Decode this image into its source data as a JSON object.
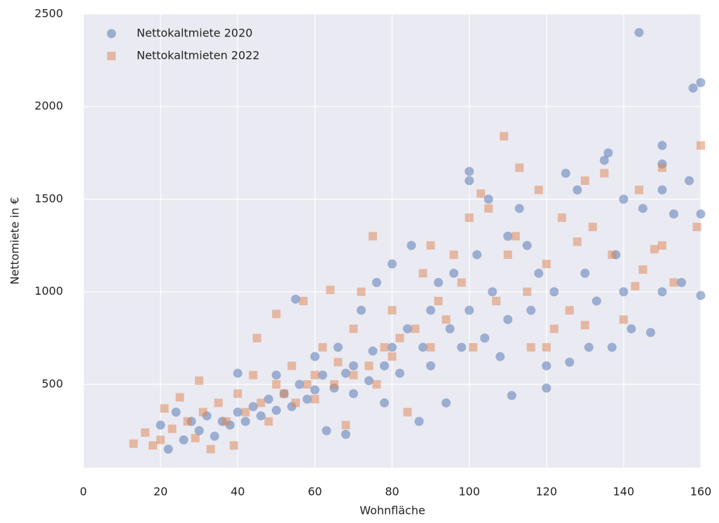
{
  "chart_data": {
    "type": "scatter",
    "x_label": "Wohnfläche",
    "y_label": "Nettomiete in €",
    "xlim": [
      0,
      160
    ],
    "xticks": [
      0,
      20,
      40,
      60,
      80,
      100,
      120,
      140,
      160
    ],
    "ylim": [
      50,
      2500
    ],
    "yticks": [
      500,
      1000,
      1500,
      2000,
      2500
    ],
    "grid": true,
    "legend": "upper-left",
    "series": [
      {
        "name": "Nettokaltmiete 2020",
        "color": "#4c72b0",
        "marker": "circle",
        "x": [
          20,
          22,
          24,
          26,
          28,
          30,
          32,
          34,
          36,
          38,
          40,
          40,
          42,
          44,
          46,
          48,
          50,
          50,
          52,
          54,
          55,
          56,
          58,
          60,
          60,
          62,
          63,
          65,
          66,
          68,
          68,
          70,
          70,
          72,
          74,
          75,
          76,
          78,
          78,
          80,
          80,
          82,
          84,
          85,
          87,
          88,
          90,
          90,
          92,
          94,
          95,
          96,
          98,
          100,
          100,
          100,
          102,
          104,
          105,
          106,
          108,
          110,
          110,
          111,
          113,
          115,
          116,
          118,
          120,
          120,
          122,
          125,
          126,
          128,
          130,
          131,
          133,
          135,
          136,
          137,
          138,
          140,
          140,
          142,
          144,
          145,
          147,
          150,
          150,
          150,
          150,
          153,
          155,
          157,
          158,
          160,
          160,
          160
        ],
        "values": [
          280,
          150,
          350,
          200,
          300,
          250,
          330,
          220,
          300,
          280,
          350,
          560,
          300,
          380,
          330,
          420,
          360,
          550,
          450,
          380,
          960,
          500,
          420,
          470,
          650,
          550,
          250,
          480,
          700,
          230,
          560,
          600,
          450,
          900,
          520,
          680,
          1050,
          600,
          400,
          700,
          1150,
          560,
          800,
          1250,
          300,
          700,
          900,
          600,
          1050,
          400,
          800,
          1100,
          700,
          1650,
          1600,
          900,
          1200,
          750,
          1500,
          1000,
          650,
          1300,
          850,
          440,
          1450,
          1250,
          900,
          1100,
          480,
          600,
          1000,
          1640,
          620,
          1550,
          1100,
          700,
          950,
          1710,
          1750,
          700,
          1200,
          1500,
          1000,
          800,
          2400,
          1450,
          780,
          1790,
          1690,
          1550,
          1000,
          1420,
          1050,
          1600,
          2100,
          2130,
          1420,
          980
        ]
      },
      {
        "name": "Nettokaltmieten 2022",
        "color": "#dd8452",
        "marker": "square",
        "x": [
          13,
          16,
          18,
          20,
          21,
          23,
          25,
          27,
          29,
          30,
          31,
          33,
          35,
          37,
          39,
          40,
          42,
          44,
          45,
          46,
          48,
          50,
          50,
          52,
          54,
          55,
          57,
          58,
          60,
          60,
          62,
          64,
          65,
          66,
          68,
          70,
          70,
          72,
          74,
          75,
          76,
          78,
          80,
          80,
          82,
          84,
          86,
          88,
          90,
          90,
          92,
          94,
          96,
          98,
          100,
          101,
          103,
          105,
          107,
          109,
          110,
          112,
          113,
          115,
          116,
          118,
          120,
          120,
          122,
          124,
          126,
          128,
          130,
          130,
          132,
          135,
          137,
          140,
          143,
          144,
          145,
          148,
          150,
          150,
          153,
          159,
          160
        ],
        "values": [
          180,
          240,
          170,
          200,
          370,
          260,
          430,
          300,
          210,
          520,
          350,
          150,
          400,
          300,
          170,
          450,
          350,
          550,
          750,
          400,
          300,
          880,
          500,
          450,
          600,
          400,
          950,
          500,
          550,
          420,
          700,
          1010,
          500,
          620,
          280,
          800,
          550,
          1000,
          600,
          1300,
          500,
          700,
          650,
          900,
          750,
          350,
          800,
          1100,
          700,
          1250,
          950,
          850,
          1200,
          1050,
          1400,
          700,
          1530,
          1450,
          950,
          1840,
          1200,
          1300,
          1670,
          1000,
          700,
          1550,
          1150,
          700,
          800,
          1400,
          900,
          1270,
          1600,
          820,
          1350,
          1640,
          1200,
          850,
          1030,
          1550,
          1120,
          1230,
          1670,
          1250,
          1050,
          1350,
          1790
        ]
      }
    ]
  }
}
